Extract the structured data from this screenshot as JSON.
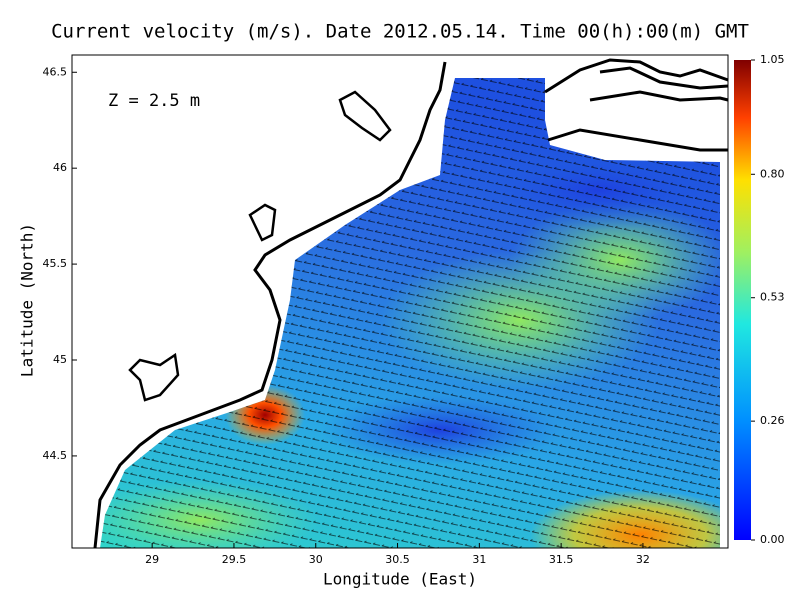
{
  "title": "Current velocity (m/s). Date 2012.05.14. Time 00(h):00(m) GMT",
  "annotation": "Z = 2.5 m",
  "x_axis": {
    "label": "Longitude (East)",
    "lim": [
      28.51,
      32.52
    ],
    "ticks": [
      29,
      29.5,
      30,
      30.5,
      31,
      31.5,
      32
    ]
  },
  "y_axis": {
    "label": "Latitude (North)",
    "lim": [
      44.02,
      46.59
    ],
    "ticks": [
      44.5,
      45,
      45.5,
      46,
      46.5
    ]
  },
  "colorbar": {
    "lim": [
      0,
      1.05
    ],
    "ticks": [
      {
        "value": 0,
        "label": "0.00"
      },
      0.26,
      0.53,
      {
        "value": 0.8,
        "label": "0.80"
      },
      1.05
    ]
  }
}
